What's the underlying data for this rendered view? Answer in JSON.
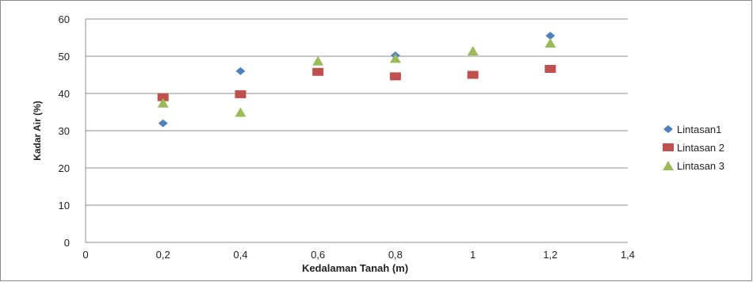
{
  "chart_data": {
    "type": "scatter",
    "title": "",
    "xlabel": "Kedalaman Tanah  (m)",
    "ylabel": "Kadar Air (%)",
    "xlim": [
      0,
      1.4
    ],
    "ylim": [
      0,
      60
    ],
    "x_ticks": [
      0,
      0.2,
      0.4,
      0.6,
      0.8,
      1,
      1.2,
      1.4
    ],
    "x_tick_labels": [
      "0",
      "0,2",
      "0,4",
      "0,6",
      "0,8",
      "1",
      "1,2",
      "1,4"
    ],
    "y_ticks": [
      0,
      10,
      20,
      30,
      40,
      50,
      60
    ],
    "y_tick_labels": [
      "0",
      "10",
      "20",
      "30",
      "40",
      "50",
      "60"
    ],
    "grid": "horizontal",
    "legend_position": "right",
    "series": [
      {
        "name": "Lintasan1",
        "marker": "diamond",
        "color": "#4F81BD",
        "x": [
          0.2,
          0.4,
          0.8,
          1.2
        ],
        "y": [
          32,
          46,
          50.2,
          55.5
        ]
      },
      {
        "name": "Lintasan 2",
        "marker": "square",
        "color": "#C0504D",
        "x": [
          0.2,
          0.4,
          0.6,
          0.8,
          1,
          1.2
        ],
        "y": [
          39,
          39.8,
          45.8,
          44.6,
          45,
          46.6
        ]
      },
      {
        "name": "Lintasan 3",
        "marker": "triangle",
        "color": "#9BBB59",
        "x": [
          0.2,
          0.4,
          0.6,
          0.8,
          1,
          1.2
        ],
        "y": [
          37.5,
          35,
          48.8,
          49.5,
          51.5,
          53.6
        ]
      }
    ]
  }
}
